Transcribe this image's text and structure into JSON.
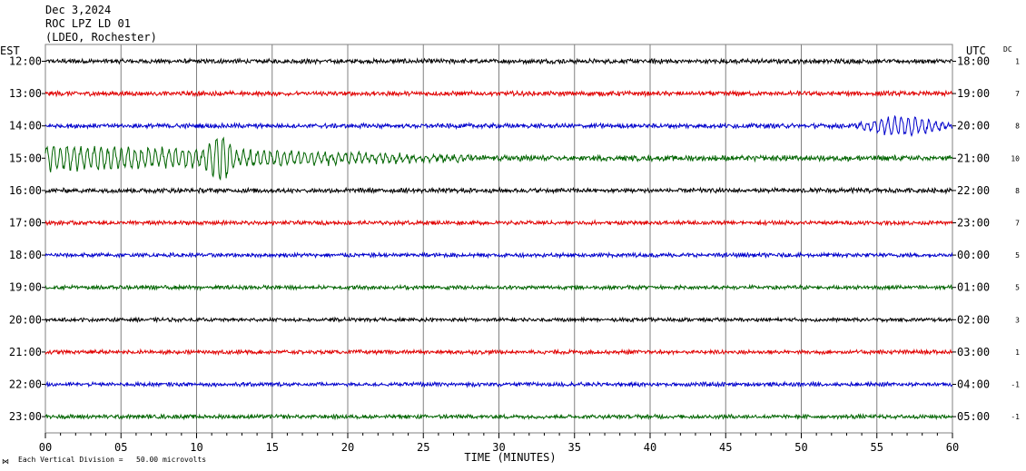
{
  "header": {
    "date": "Dec 3,2024",
    "station": "ROC LPZ LD 01",
    "network": "(LDEO, Rochester)"
  },
  "left_axis_title": "EST",
  "right_axis_title": "UTC",
  "dc_title": "DC",
  "footer": {
    "scale_note": "Each Vertical Division =   50.00 microvolts"
  },
  "colors": {
    "black": "#000000",
    "red": "#e00000",
    "blue": "#0000cc",
    "green": "#006400",
    "grid": "#808080"
  },
  "chart_data": {
    "type": "line",
    "xlabel": "TIME (MINUTES)",
    "xlim": [
      0,
      60
    ],
    "x_ticks": [
      "00",
      "05",
      "10",
      "15",
      "20",
      "25",
      "30",
      "35",
      "40",
      "45",
      "50",
      "55",
      "60"
    ],
    "grid": "vertical every 5 minutes",
    "traces": [
      {
        "est": "12:00",
        "utc": "18:00",
        "dc": "1",
        "color": "black",
        "amplitude": 0.25
      },
      {
        "est": "13:00",
        "utc": "19:00",
        "dc": "7",
        "color": "red",
        "amplitude": 0.25
      },
      {
        "est": "14:00",
        "utc": "20:00",
        "dc": "8",
        "color": "blue",
        "amplitude": 0.25
      },
      {
        "est": "15:00",
        "utc": "21:00",
        "dc": "10",
        "color": "green",
        "amplitude": 0.3
      },
      {
        "est": "16:00",
        "utc": "22:00",
        "dc": "8",
        "color": "black",
        "amplitude": 0.25
      },
      {
        "est": "17:00",
        "utc": "23:00",
        "dc": "7",
        "color": "red",
        "amplitude": 0.22
      },
      {
        "est": "18:00",
        "utc": "00:00",
        "dc": "5",
        "color": "blue",
        "amplitude": 0.22
      },
      {
        "est": "19:00",
        "utc": "01:00",
        "dc": "5",
        "color": "green",
        "amplitude": 0.22
      },
      {
        "est": "20:00",
        "utc": "02:00",
        "dc": "3",
        "color": "black",
        "amplitude": 0.2
      },
      {
        "est": "21:00",
        "utc": "03:00",
        "dc": "1",
        "color": "red",
        "amplitude": 0.22
      },
      {
        "est": "22:00",
        "utc": "04:00",
        "dc": "-1",
        "color": "blue",
        "amplitude": 0.22
      },
      {
        "est": "23:00",
        "utc": "05:00",
        "dc": "-1",
        "color": "green",
        "amplitude": 0.22
      }
    ],
    "events": [
      {
        "trace": 2,
        "start_min": 53.5,
        "end_min": 60,
        "peak_amplitude": 1.2
      },
      {
        "trace": 3,
        "start_min": 0,
        "end_min": 28,
        "peak_amplitude": 1.6
      },
      {
        "trace": 3,
        "start_min": 10.5,
        "end_min": 12.5,
        "peak_amplitude": 2.0
      }
    ]
  }
}
